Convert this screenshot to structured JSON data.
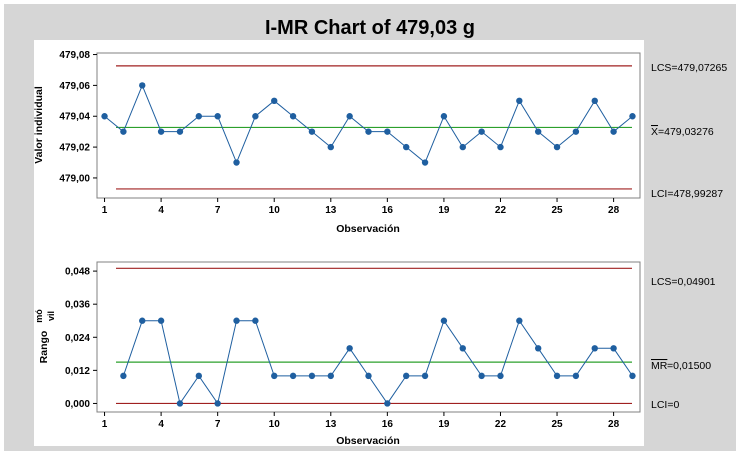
{
  "title": "I-MR Chart of 479,03 g",
  "colors": {
    "frame": "#d6d6d6",
    "plot_border": "#808080",
    "series": "#1f5fa0",
    "center_line": "#2ca02c",
    "limit_line": "#a02020"
  },
  "chart_data": [
    {
      "type": "line",
      "name_panel": "individual",
      "xlabel": "Observación",
      "ylabel": "Valor individual",
      "x_ticks": [
        1,
        4,
        7,
        10,
        13,
        16,
        19,
        22,
        25,
        28
      ],
      "x_tick_labels": [
        "1",
        "4",
        "7",
        "10",
        "13",
        "16",
        "19",
        "22",
        "25",
        "28"
      ],
      "y_ticks": [
        479.0,
        479.02,
        479.04,
        479.06,
        479.08
      ],
      "y_tick_labels": [
        "479,00",
        "479,02",
        "479,04",
        "479,06",
        "479,08"
      ],
      "xlim": [
        0.6,
        29.4
      ],
      "ylim": [
        478.987,
        479.081
      ],
      "x": [
        1,
        2,
        3,
        4,
        5,
        6,
        7,
        8,
        9,
        10,
        11,
        12,
        13,
        14,
        15,
        16,
        17,
        18,
        19,
        20,
        21,
        22,
        23,
        24,
        25,
        26,
        27,
        28,
        29
      ],
      "values": [
        479.04,
        479.03,
        479.06,
        479.03,
        479.03,
        479.04,
        479.04,
        479.01,
        479.04,
        479.05,
        479.04,
        479.03,
        479.02,
        479.04,
        479.03,
        479.03,
        479.02,
        479.01,
        479.04,
        479.02,
        479.03,
        479.02,
        479.05,
        479.03,
        479.02,
        479.03,
        479.05,
        479.03,
        479.04
      ],
      "ucl": 479.07265,
      "center": 479.03276,
      "lcl": 478.99287,
      "ucl_label": "LCS=479,07265",
      "center_label_bar": "X",
      "center_label": "=479,03276",
      "lcl_label": "LCI=478,99287"
    },
    {
      "type": "line",
      "name_panel": "moving-range",
      "xlabel": "Observación",
      "ylabel_main": "Rango",
      "ylabel_sup": "mó",
      "ylabel_sub": "vil",
      "x_ticks": [
        1,
        4,
        7,
        10,
        13,
        16,
        19,
        22,
        25,
        28
      ],
      "x_tick_labels": [
        "1",
        "4",
        "7",
        "10",
        "13",
        "16",
        "19",
        "22",
        "25",
        "28"
      ],
      "y_ticks": [
        0.0,
        0.012,
        0.024,
        0.036,
        0.048
      ],
      "y_tick_labels": [
        "0,000",
        "0,012",
        "0,024",
        "0,036",
        "0,048"
      ],
      "xlim": [
        0.6,
        29.4
      ],
      "ylim": [
        -0.0031,
        0.0513
      ],
      "x": [
        2,
        3,
        4,
        5,
        6,
        7,
        8,
        9,
        10,
        11,
        12,
        13,
        14,
        15,
        16,
        17,
        18,
        19,
        20,
        21,
        22,
        23,
        24,
        25,
        26,
        27,
        28,
        29
      ],
      "values": [
        0.01,
        0.03,
        0.03,
        0.0,
        0.01,
        0.0,
        0.03,
        0.03,
        0.01,
        0.01,
        0.01,
        0.01,
        0.02,
        0.01,
        0.0,
        0.01,
        0.01,
        0.03,
        0.02,
        0.01,
        0.01,
        0.03,
        0.02,
        0.01,
        0.01,
        0.02,
        0.02,
        0.01
      ],
      "ucl": 0.04901,
      "center": 0.015,
      "lcl": 0,
      "ucl_label": "LCS=0,04901",
      "center_label_bar": "MR",
      "center_label": "=0,01500",
      "lcl_label": "LCI=0"
    }
  ]
}
